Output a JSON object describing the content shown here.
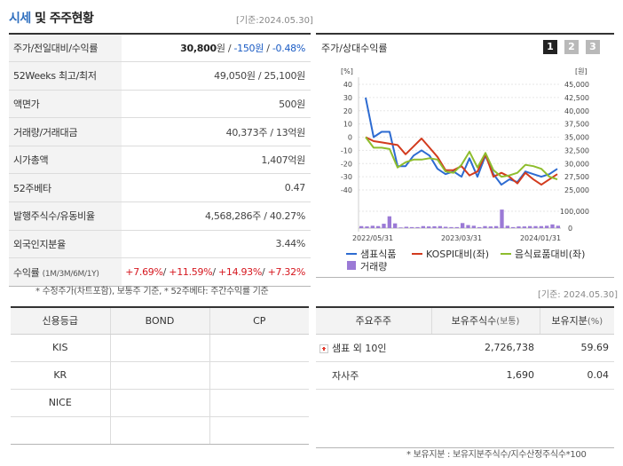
{
  "header": {
    "title_highlight": "시세",
    "title_rest": " 및 주주현황",
    "base_date": "[기준:2024.05.30]"
  },
  "info_rows": [
    {
      "key": "주가/전일대비/수익률",
      "price": "30,800",
      "price_unit": "원",
      "sep1": " / ",
      "change": "-150원",
      "sep2": " / ",
      "rate": "-0.48%"
    },
    {
      "key": "52Weeks 최고/최저",
      "value": "49,050원 / 25,100원"
    },
    {
      "key": "액면가",
      "value": "500원"
    },
    {
      "key": "거래량/거래대금",
      "value": "40,373주 / 13억원"
    },
    {
      "key": "시가총액",
      "value": "1,407억원"
    },
    {
      "key": "52주베타",
      "value": "0.47"
    },
    {
      "key": "발행주식수/유동비율",
      "value": "4,568,286주 / 40.27%"
    },
    {
      "key": "외국인지분율",
      "value": "3.44%"
    },
    {
      "key": "수익률",
      "key_sub": "(1M/3M/6M/1Y)",
      "r1": "+7.69%",
      "r2": "+11.59%",
      "r3": "+14.93%",
      "r4": "+7.32%",
      "sep": "/ "
    }
  ],
  "notes": {
    "left": "* 수정주가(차트포함), 보통주 기준, * 52주베타: 주간수익률 기준",
    "right_date": "[기준: 2024.05.30]",
    "bottom": "* 보유지분 : 보유지분주식수/지수산정주식수*100"
  },
  "chart": {
    "title": "주가/상대수익률",
    "tabs": [
      "1",
      "2",
      "3"
    ],
    "left_unit": "[%]",
    "right_unit": "[원]",
    "vol_tick": "100,000",
    "vol_zero": "0",
    "legend": {
      "s1": "샘표식품",
      "s2": "KOSPI대비(좌)",
      "s3": "음식료품대비(좌)",
      "s4": "거래량"
    }
  },
  "chart_data": {
    "type": "line",
    "x_labels": [
      "2022/05/31",
      "2023/03/31",
      "2024/01/31"
    ],
    "left_axis": {
      "label": "[%]",
      "ylim": [
        -40,
        40
      ],
      "ticks": [
        40,
        30,
        20,
        10,
        0,
        -10,
        -20,
        -30,
        -40
      ]
    },
    "right_axis": {
      "label": "[원]",
      "ylim": [
        25000,
        45000
      ],
      "ticks": [
        "45,000",
        "42,500",
        "40,000",
        "37,500",
        "35,000",
        "32,500",
        "30,000",
        "27,500",
        "25,000"
      ]
    },
    "series": [
      {
        "name": "샘표식품",
        "color": "#2d6bd1",
        "axis": "right",
        "values": [
          42500,
          35000,
          36000,
          36000,
          29500,
          29500,
          31500,
          32500,
          31500,
          29000,
          28000,
          28500,
          27500,
          31000,
          27500,
          31500,
          28000,
          26000,
          27000,
          26500,
          28500,
          28000,
          27500,
          28000,
          29000
        ]
      },
      {
        "name": "KOSPI대비(좌)",
        "color": "#d23b1e",
        "axis": "left",
        "values": [
          0,
          -3,
          -4,
          -5,
          -6,
          -13,
          -7,
          -1,
          -8,
          -15,
          -25,
          -25,
          -22,
          -29,
          -26,
          -13,
          -30,
          -27,
          -30,
          -35,
          -27,
          -32,
          -36,
          -32,
          -28
        ]
      },
      {
        "name": "음식료품대비(좌)",
        "color": "#8ebd2d",
        "axis": "left",
        "values": [
          0,
          -8,
          -8,
          -9,
          -23,
          -19,
          -17,
          -17,
          -16,
          -17,
          -26,
          -27,
          -21,
          -11,
          -23,
          -12,
          -25,
          -30,
          -29,
          -27,
          -21,
          -22,
          -24,
          -30,
          -32
        ]
      }
    ],
    "volume": {
      "name": "거래량",
      "color": "#9b7ad6",
      "ylim": [
        0,
        100000
      ],
      "values": [
        12000,
        10000,
        14000,
        12000,
        26000,
        70000,
        28000,
        4000,
        8000,
        6000,
        6000,
        12000,
        10000,
        11000,
        12000,
        8000,
        6000,
        6000,
        30000,
        18000,
        14000,
        6000,
        12000,
        10000,
        12000,
        110000,
        14000,
        6000,
        10000,
        10000,
        12000,
        12000,
        12000,
        14000,
        22000,
        14000
      ]
    }
  },
  "credit": {
    "headers": [
      "신용등급",
      "BOND",
      "CP"
    ],
    "rows": [
      [
        "KIS",
        "",
        ""
      ],
      [
        "KR",
        "",
        ""
      ],
      [
        "NICE",
        "",
        ""
      ],
      [
        "",
        "",
        ""
      ]
    ]
  },
  "holders": {
    "headers": [
      "주요주주",
      "보유주식수",
      "(보통)",
      "보유지분",
      "(%)"
    ],
    "rows": [
      {
        "name": "샘표 외 10인",
        "shares": "2,726,738",
        "pct": "59.69",
        "expand": true
      },
      {
        "name": "자사주",
        "shares": "1,690",
        "pct": "0.04",
        "expand": false
      }
    ]
  }
}
